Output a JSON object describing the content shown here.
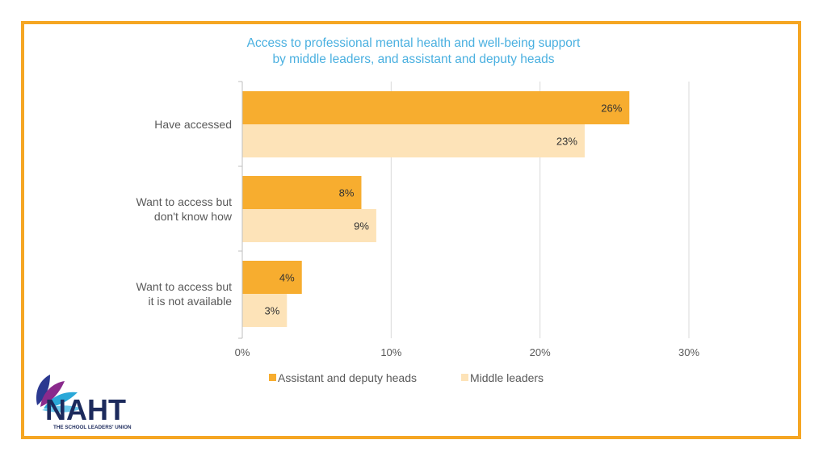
{
  "chart_data": {
    "type": "bar",
    "orientation": "horizontal",
    "title": "Access to professional mental health and well-being support by middle leaders, and assistant and deputy heads",
    "title_lines": [
      "Access to professional mental health and well-being support",
      "by middle leaders, and assistant and deputy heads"
    ],
    "categories": [
      [
        "Have accessed"
      ],
      [
        "Want to access but",
        "don't know how"
      ],
      [
        "Want to access but",
        "it is not available"
      ]
    ],
    "series": [
      {
        "name": "Assistant and deputy heads",
        "color": "#f7ad2f",
        "values": [
          26,
          8,
          4
        ],
        "labels": [
          "26%",
          "8%",
          "4%"
        ]
      },
      {
        "name": "Middle leaders",
        "color": "#fde3b8",
        "values": [
          23,
          9,
          3
        ],
        "labels": [
          "23%",
          "9%",
          "3%"
        ]
      }
    ],
    "xlim": [
      0,
      30
    ],
    "x_ticks": [
      0,
      10,
      20,
      30
    ],
    "x_tick_labels": [
      "0%",
      "10%",
      "20%",
      "30%"
    ],
    "grid": true,
    "legend_position": "bottom"
  },
  "colors": {
    "border": "#f5a623",
    "title": "#4ab0e0",
    "grid": "#d9d9d9",
    "text": "#595959"
  },
  "logo": {
    "word": "NAHT",
    "tagline": "THE SCHOOL LEADERS' UNION",
    "icon": "petal-logo-icon"
  }
}
